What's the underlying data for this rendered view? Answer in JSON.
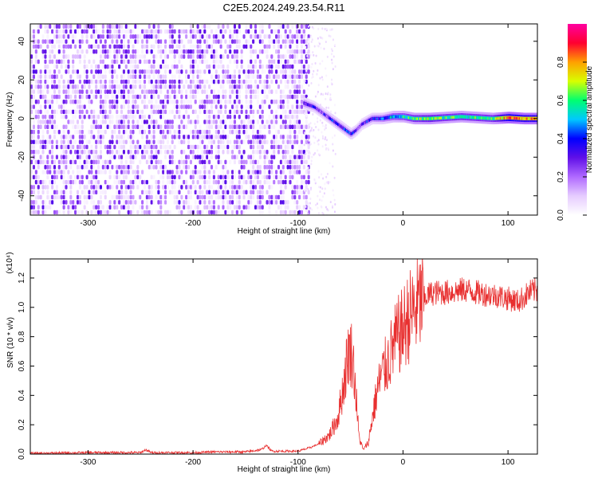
{
  "title": "C2E5.2024.249.23.54.R11",
  "chart_data": [
    {
      "type": "heatmap",
      "xlabel": "Height of straight line (km)",
      "ylabel": "Frequency (Hz)",
      "xlim": [
        -355,
        128
      ],
      "ylim": [
        -50,
        49
      ],
      "xticks": [
        -300,
        -200,
        -100,
        0,
        100
      ],
      "yticks": [
        -40,
        -20,
        0,
        20,
        40
      ],
      "colorbar": {
        "label": "Normalized spectral amplitude",
        "range": [
          0,
          1
        ],
        "ticks": [
          "0.0",
          "0.2",
          "0.4",
          "0.6",
          "0.8"
        ],
        "colormap": [
          "#ffffff",
          "#e6ccff",
          "#b06aff",
          "#6010e8",
          "#0000ff",
          "#00c8ff",
          "#00ff70",
          "#d8ff00",
          "#ffa000",
          "#ff0030",
          "#ff00a0"
        ]
      },
      "noise_region_x": [
        -355,
        -90
      ],
      "carrier_trace": [
        {
          "x": -95,
          "f": 8,
          "amp": 0.35
        },
        {
          "x": -85,
          "f": 6,
          "amp": 0.3
        },
        {
          "x": -75,
          "f": 2,
          "amp": 0.3
        },
        {
          "x": -65,
          "f": -2,
          "amp": 0.35
        },
        {
          "x": -55,
          "f": -6,
          "amp": 0.35
        },
        {
          "x": -50,
          "f": -8,
          "amp": 0.35
        },
        {
          "x": -45,
          "f": -6,
          "amp": 0.3
        },
        {
          "x": -40,
          "f": -3,
          "amp": 0.3
        },
        {
          "x": -30,
          "f": 0,
          "amp": 0.35
        },
        {
          "x": -20,
          "f": 0,
          "amp": 0.4
        },
        {
          "x": -10,
          "f": 1,
          "amp": 0.5
        },
        {
          "x": 0,
          "f": 1,
          "amp": 0.55
        },
        {
          "x": 10,
          "f": 0,
          "amp": 0.6
        },
        {
          "x": 25,
          "f": 0,
          "amp": 0.65
        },
        {
          "x": 40,
          "f": 0.5,
          "amp": 0.6
        },
        {
          "x": 55,
          "f": 1,
          "amp": 0.6
        },
        {
          "x": 70,
          "f": 0.5,
          "amp": 0.6
        },
        {
          "x": 85,
          "f": 0,
          "amp": 0.6
        },
        {
          "x": 100,
          "f": 0.5,
          "amp": 0.85
        },
        {
          "x": 115,
          "f": 0,
          "amp": 0.8
        },
        {
          "x": 128,
          "f": 0,
          "amp": 0.8
        }
      ]
    },
    {
      "type": "line",
      "xlabel": "Height of straight line (km)",
      "ylabel": "SNR (10 * v/v)",
      "scale_label": "(x10⁴)",
      "xlim": [
        -355,
        128
      ],
      "ylim": [
        0,
        1.33
      ],
      "xticks": [
        -300,
        -200,
        -100,
        0,
        100
      ],
      "yticks": [
        "0.0",
        "0.2",
        "0.4",
        "0.6",
        "0.8",
        "1.0",
        "1.2"
      ],
      "series_color": "#e83030",
      "x": [
        -355,
        -300,
        -250,
        -245,
        -240,
        -200,
        -180,
        -150,
        -135,
        -130,
        -125,
        -110,
        -100,
        -90,
        -80,
        -70,
        -62,
        -57,
        -52,
        -48,
        -45,
        -42,
        -38,
        -33,
        -28,
        -24,
        -20,
        -15,
        -10,
        -5,
        0,
        5,
        10,
        15,
        20,
        25,
        30,
        40,
        50,
        60,
        70,
        80,
        90,
        100,
        110,
        120,
        128
      ],
      "y": [
        0.005,
        0.01,
        0.01,
        0.03,
        0.01,
        0.01,
        0.015,
        0.015,
        0.03,
        0.06,
        0.02,
        0.02,
        0.02,
        0.04,
        0.07,
        0.13,
        0.25,
        0.45,
        0.7,
        0.68,
        0.42,
        0.12,
        0.03,
        0.08,
        0.3,
        0.45,
        0.55,
        0.62,
        0.72,
        0.8,
        0.85,
        0.93,
        0.97,
        1.02,
        1.06,
        1.09,
        1.1,
        1.1,
        1.11,
        1.12,
        1.1,
        1.09,
        1.08,
        1.06,
        1.04,
        1.1,
        1.12
      ]
    }
  ]
}
